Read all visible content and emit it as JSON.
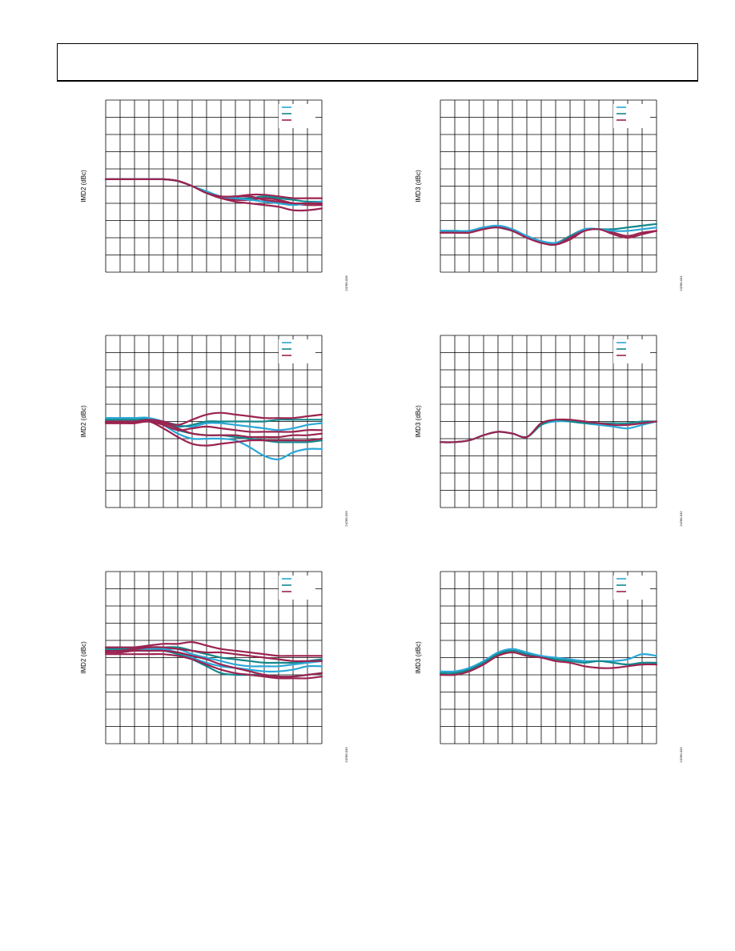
{
  "page": {
    "header_text": ""
  },
  "colors": {
    "cyan": "#2aa7d8",
    "teal": "#13878c",
    "maroon": "#9b2350",
    "grid": "#000000"
  },
  "chart_data": [
    {
      "id": "top-left",
      "type": "line",
      "ylabel": "IMD2 (dBc)",
      "figure_id": "24786-028",
      "x": [
        0,
        1,
        2,
        3,
        4,
        5,
        6,
        7,
        8,
        9,
        10,
        11,
        12,
        13,
        14,
        15
      ],
      "xlim": [
        0,
        15
      ],
      "ylim": [
        0,
        10
      ],
      "grid_cols": 15,
      "grid_rows": 10,
      "legend_position": "top-right",
      "series": [
        {
          "color": "maroon",
          "values": [
            5.4,
            5.4,
            5.4,
            5.4,
            5.4,
            5.3,
            5.0,
            4.6,
            4.3,
            4.2,
            4.2,
            4.3,
            4.2,
            4.0,
            3.9,
            3.9
          ]
        },
        {
          "color": "maroon",
          "values": [
            5.4,
            5.4,
            5.4,
            5.4,
            5.4,
            5.3,
            5.0,
            4.6,
            4.4,
            4.4,
            4.5,
            4.5,
            4.4,
            4.3,
            4.3,
            4.3
          ]
        },
        {
          "color": "maroon",
          "values": [
            5.4,
            5.4,
            5.4,
            5.4,
            5.4,
            5.3,
            5.0,
            4.6,
            4.3,
            4.1,
            4.0,
            3.9,
            3.8,
            3.6,
            3.6,
            3.7
          ]
        },
        {
          "color": "teal",
          "values": [
            5.4,
            5.4,
            5.4,
            5.4,
            5.4,
            5.3,
            5.0,
            4.6,
            4.4,
            4.3,
            4.3,
            4.4,
            4.3,
            4.2,
            4.1,
            4.1
          ]
        },
        {
          "color": "cyan",
          "values": [
            5.4,
            5.4,
            5.4,
            5.4,
            5.4,
            5.3,
            5.0,
            4.7,
            4.4,
            4.3,
            4.2,
            4.1,
            4.0,
            3.9,
            4.0,
            4.1
          ]
        },
        {
          "color": "maroon",
          "values": [
            5.4,
            5.4,
            5.4,
            5.4,
            5.4,
            5.3,
            5.0,
            4.6,
            4.4,
            4.4,
            4.4,
            4.2,
            4.1,
            4.0,
            4.0,
            4.0
          ]
        }
      ]
    },
    {
      "id": "top-right",
      "type": "line",
      "ylabel": "IMD3 (dBc)",
      "figure_id": "24786-031",
      "x": [
        0,
        1,
        2,
        3,
        4,
        5,
        6,
        7,
        8,
        9,
        10,
        11,
        12,
        13,
        14,
        15
      ],
      "xlim": [
        0,
        15
      ],
      "ylim": [
        0,
        10
      ],
      "grid_cols": 15,
      "grid_rows": 10,
      "legend_position": "top-right",
      "series": [
        {
          "color": "maroon",
          "values": [
            2.3,
            2.3,
            2.3,
            2.5,
            2.6,
            2.4,
            2.0,
            1.7,
            1.6,
            1.9,
            2.4,
            2.5,
            2.3,
            2.1,
            2.3,
            2.4
          ]
        },
        {
          "color": "teal",
          "values": [
            2.4,
            2.4,
            2.4,
            2.6,
            2.6,
            2.4,
            2.1,
            1.8,
            1.7,
            2.1,
            2.5,
            2.5,
            2.5,
            2.6,
            2.7,
            2.8
          ]
        },
        {
          "color": "cyan",
          "values": [
            2.4,
            2.4,
            2.4,
            2.6,
            2.7,
            2.5,
            2.1,
            1.8,
            1.7,
            2.0,
            2.5,
            2.5,
            2.4,
            2.4,
            2.5,
            2.6
          ]
        },
        {
          "color": "maroon",
          "values": [
            2.3,
            2.3,
            2.3,
            2.5,
            2.6,
            2.4,
            2.0,
            1.7,
            1.6,
            2.0,
            2.4,
            2.5,
            2.2,
            2.0,
            2.2,
            2.4
          ]
        }
      ]
    },
    {
      "id": "middle-left",
      "type": "line",
      "ylabel": "IMD2 (dBc)",
      "figure_id": "24786-029",
      "x": [
        0,
        1,
        2,
        3,
        4,
        5,
        6,
        7,
        8,
        9,
        10,
        11,
        12,
        13,
        14,
        15
      ],
      "xlim": [
        0,
        15
      ],
      "ylim": [
        0,
        10
      ],
      "grid_cols": 15,
      "grid_rows": 10,
      "legend_position": "top-right",
      "series": [
        {
          "color": "cyan",
          "values": [
            5.2,
            5.2,
            5.2,
            5.2,
            4.8,
            4.3,
            4.0,
            4.0,
            4.0,
            3.9,
            3.5,
            3.0,
            2.8,
            3.2,
            3.4,
            3.4
          ]
        },
        {
          "color": "cyan",
          "values": [
            5.2,
            5.2,
            5.2,
            5.2,
            5.0,
            4.8,
            4.7,
            4.9,
            4.9,
            4.8,
            4.7,
            4.6,
            4.5,
            4.6,
            4.8,
            4.9
          ]
        },
        {
          "color": "teal",
          "values": [
            5.1,
            5.1,
            5.1,
            5.1,
            4.8,
            4.5,
            4.3,
            4.2,
            4.2,
            4.1,
            4.0,
            3.9,
            3.8,
            3.8,
            3.8,
            3.9
          ]
        },
        {
          "color": "teal",
          "values": [
            5.0,
            5.0,
            5.0,
            5.0,
            4.9,
            4.7,
            4.8,
            5.0,
            5.0,
            5.0,
            5.0,
            5.0,
            5.1,
            5.1,
            5.1,
            5.1
          ]
        },
        {
          "color": "maroon",
          "values": [
            5.0,
            5.0,
            5.0,
            5.1,
            5.0,
            4.8,
            5.1,
            5.4,
            5.5,
            5.4,
            5.3,
            5.2,
            5.2,
            5.2,
            5.3,
            5.4
          ]
        },
        {
          "color": "maroon",
          "values": [
            4.9,
            4.9,
            4.9,
            5.0,
            4.6,
            4.1,
            3.7,
            3.6,
            3.7,
            3.8,
            3.9,
            3.9,
            3.9,
            3.9,
            3.9,
            4.0
          ]
        },
        {
          "color": "maroon",
          "values": [
            4.9,
            4.9,
            4.9,
            5.0,
            4.8,
            4.5,
            4.6,
            4.7,
            4.6,
            4.5,
            4.4,
            4.4,
            4.4,
            4.4,
            4.5,
            4.5
          ]
        },
        {
          "color": "maroon",
          "values": [
            5.0,
            5.0,
            5.0,
            5.0,
            4.9,
            4.6,
            4.3,
            4.2,
            4.2,
            4.2,
            4.1,
            4.1,
            4.1,
            4.2,
            4.2,
            4.3
          ]
        }
      ]
    },
    {
      "id": "middle-right",
      "type": "line",
      "ylabel": "IMD3 (dBc)",
      "figure_id": "24786-032",
      "x": [
        0,
        1,
        2,
        3,
        4,
        5,
        6,
        7,
        8,
        9,
        10,
        11,
        12,
        13,
        14,
        15
      ],
      "xlim": [
        0,
        15
      ],
      "ylim": [
        0,
        10
      ],
      "grid_cols": 15,
      "grid_rows": 10,
      "legend_position": "top-right",
      "series": [
        {
          "color": "cyan",
          "values": [
            3.8,
            3.8,
            3.9,
            4.2,
            4.4,
            4.3,
            4.1,
            4.8,
            5.0,
            5.0,
            4.9,
            4.8,
            4.7,
            4.6,
            4.8,
            5.0
          ]
        },
        {
          "color": "teal",
          "values": [
            3.8,
            3.8,
            3.9,
            4.2,
            4.4,
            4.3,
            4.1,
            4.8,
            5.1,
            5.0,
            4.9,
            4.9,
            4.9,
            4.9,
            5.0,
            5.0
          ]
        },
        {
          "color": "maroon",
          "values": [
            3.8,
            3.8,
            3.9,
            4.2,
            4.4,
            4.3,
            4.1,
            4.9,
            5.1,
            5.1,
            5.0,
            4.9,
            4.8,
            4.8,
            4.9,
            5.0
          ]
        }
      ]
    },
    {
      "id": "bottom-left",
      "type": "line",
      "ylabel": "IMD2 (dBc)",
      "figure_id": "24786-030",
      "x": [
        0,
        1,
        2,
        3,
        4,
        5,
        6,
        7,
        8,
        9,
        10,
        11,
        12,
        13,
        14,
        15
      ],
      "xlim": [
        0,
        15
      ],
      "ylim": [
        0,
        10
      ],
      "grid_cols": 15,
      "grid_rows": 10,
      "legend_position": "top-right",
      "series": [
        {
          "color": "cyan",
          "values": [
            5.6,
            5.6,
            5.6,
            5.6,
            5.5,
            5.3,
            5.0,
            4.7,
            4.5,
            4.4,
            4.3,
            4.2,
            4.2,
            4.3,
            4.5,
            4.5
          ]
        },
        {
          "color": "cyan",
          "values": [
            5.5,
            5.5,
            5.5,
            5.5,
            5.5,
            5.5,
            5.2,
            5.0,
            4.8,
            4.6,
            4.5,
            4.5,
            4.5,
            4.6,
            4.7,
            4.8
          ]
        },
        {
          "color": "teal",
          "values": [
            5.4,
            5.4,
            5.4,
            5.4,
            5.4,
            5.2,
            4.9,
            4.5,
            4.1,
            4.0,
            4.0,
            4.0,
            3.9,
            3.9,
            4.0,
            4.1
          ]
        },
        {
          "color": "teal",
          "values": [
            5.5,
            5.5,
            5.5,
            5.6,
            5.6,
            5.6,
            5.4,
            5.2,
            5.0,
            4.9,
            4.8,
            4.7,
            4.7,
            4.7,
            4.8,
            4.9
          ]
        },
        {
          "color": "maroon",
          "values": [
            5.6,
            5.6,
            5.6,
            5.7,
            5.8,
            5.8,
            5.9,
            5.7,
            5.5,
            5.4,
            5.3,
            5.2,
            5.1,
            5.1,
            5.1,
            5.1
          ]
        },
        {
          "color": "maroon",
          "values": [
            5.2,
            5.2,
            5.2,
            5.2,
            5.2,
            5.1,
            4.9,
            4.6,
            4.3,
            4.1,
            4.0,
            3.9,
            3.8,
            3.8,
            3.8,
            3.9
          ]
        },
        {
          "color": "maroon",
          "values": [
            5.3,
            5.3,
            5.4,
            5.4,
            5.4,
            5.3,
            5.1,
            4.9,
            4.6,
            4.4,
            4.2,
            4.0,
            3.9,
            3.9,
            4.0,
            4.1
          ]
        },
        {
          "color": "maroon",
          "values": [
            5.4,
            5.4,
            5.5,
            5.6,
            5.6,
            5.5,
            5.4,
            5.3,
            5.3,
            5.2,
            5.1,
            5.0,
            4.9,
            4.8,
            4.8,
            4.8
          ]
        }
      ]
    },
    {
      "id": "bottom-right",
      "type": "line",
      "ylabel": "IMD3 (dBc)",
      "figure_id": "24786-033",
      "x": [
        0,
        1,
        2,
        3,
        4,
        5,
        6,
        7,
        8,
        9,
        10,
        11,
        12,
        13,
        14,
        15
      ],
      "xlim": [
        0,
        15
      ],
      "ylim": [
        0,
        10
      ],
      "grid_cols": 15,
      "grid_rows": 10,
      "legend_position": "top-right",
      "series": [
        {
          "color": "cyan",
          "values": [
            4.2,
            4.2,
            4.4,
            4.8,
            5.3,
            5.5,
            5.3,
            5.1,
            5.0,
            4.9,
            4.8,
            4.8,
            4.8,
            4.9,
            5.2,
            5.1
          ]
        },
        {
          "color": "teal",
          "values": [
            4.1,
            4.1,
            4.3,
            4.7,
            5.2,
            5.4,
            5.2,
            5.0,
            4.9,
            4.8,
            4.7,
            4.8,
            4.7,
            4.6,
            4.7,
            4.7
          ]
        },
        {
          "color": "maroon",
          "values": [
            4.0,
            4.0,
            4.2,
            4.6,
            5.1,
            5.3,
            5.1,
            5.0,
            4.8,
            4.7,
            4.5,
            4.4,
            4.4,
            4.5,
            4.6,
            4.6
          ]
        }
      ]
    }
  ]
}
